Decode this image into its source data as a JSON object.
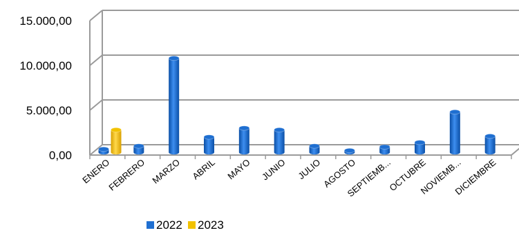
{
  "chart_data": {
    "type": "bar",
    "title": "",
    "xlabel": "",
    "ylabel": "",
    "ylim": [
      0,
      15000
    ],
    "y_ticks": [
      "0,00",
      "5.000,00",
      "10.000,00",
      "15.000,00"
    ],
    "y_tick_values": [
      0,
      5000,
      10000,
      15000
    ],
    "grid": true,
    "legend_position": "bottom-left",
    "categories": [
      "ENERO",
      "FEBRERO",
      "MARZO",
      "ABRIL",
      "MAYO",
      "JUNIO",
      "JULIO",
      "AGOSTO",
      "SEPTIEMB...",
      "OCTUBRE",
      "NOVIEMB...",
      "DICIEMBRE"
    ],
    "series": [
      {
        "name": "2022",
        "color": "#1f6fd1",
        "values": [
          350,
          700,
          10500,
          1700,
          2700,
          2500,
          700,
          200,
          600,
          1100,
          4500,
          1800
        ]
      },
      {
        "name": "2023",
        "color": "#f2c200",
        "values": [
          2500,
          null,
          null,
          null,
          null,
          null,
          null,
          null,
          null,
          null,
          null,
          null
        ]
      }
    ]
  }
}
